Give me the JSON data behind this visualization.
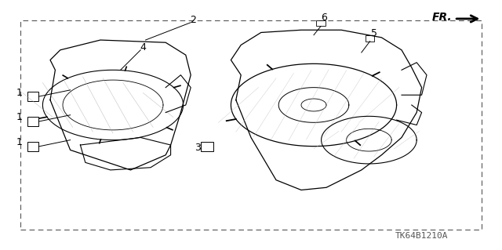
{
  "bg_color": "#ffffff",
  "line_color": "#000000",
  "dashed_color": "#888888",
  "part_number_text": "TK64B1210A",
  "fr_label": "FR.",
  "note_fontsize": 8,
  "callout_fontsize": 9
}
